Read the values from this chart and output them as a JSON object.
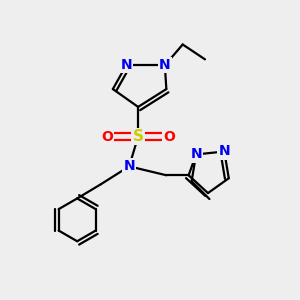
{
  "bg_color": "#eeeeee",
  "atom_colors": {
    "C": "#000000",
    "N": "#0000ee",
    "S": "#cccc00",
    "O": "#ff0000"
  },
  "bond_color": "#000000",
  "bond_width": 1.6,
  "font_size_atom": 10
}
